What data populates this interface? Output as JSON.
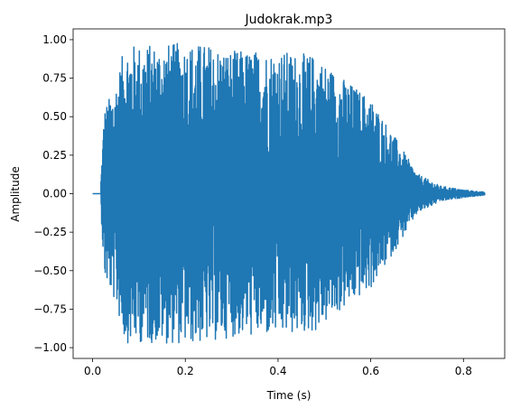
{
  "chart_data": {
    "type": "line",
    "title": "Judokrak.mp3",
    "xlabel": "Time (s)",
    "ylabel": "Amplitude",
    "xlim": [
      -0.042,
      0.889
    ],
    "ylim": [
      -1.07,
      1.07
    ],
    "x_ticks": [
      0.0,
      0.2,
      0.4,
      0.6,
      0.8
    ],
    "x_tick_labels": [
      "0.0",
      "0.2",
      "0.4",
      "0.6",
      "0.8"
    ],
    "y_ticks": [
      -1.0,
      -0.75,
      -0.5,
      -0.25,
      0.0,
      0.25,
      0.5,
      0.75,
      1.0
    ],
    "y_tick_labels": [
      "−1.00",
      "−0.75",
      "−0.50",
      "−0.25",
      "0.00",
      "0.25",
      "0.50",
      "0.75",
      "1.00"
    ],
    "grid": false,
    "series": [
      {
        "color": "#1f77b4",
        "duration": 0.846,
        "silence_until": 0.018,
        "envelope": [
          {
            "t": 0.018,
            "a": 0.1
          },
          {
            "t": 0.025,
            "a": 0.55
          },
          {
            "t": 0.05,
            "a": 0.72
          },
          {
            "t": 0.07,
            "a": 0.97
          },
          {
            "t": 0.12,
            "a": 0.97
          },
          {
            "t": 0.2,
            "a": 0.98
          },
          {
            "t": 0.25,
            "a": 0.97
          },
          {
            "t": 0.3,
            "a": 0.93
          },
          {
            "t": 0.4,
            "a": 0.93
          },
          {
            "t": 0.48,
            "a": 0.9
          },
          {
            "t": 0.55,
            "a": 0.73
          },
          {
            "t": 0.6,
            "a": 0.62
          },
          {
            "t": 0.65,
            "a": 0.38
          },
          {
            "t": 0.7,
            "a": 0.13
          },
          {
            "t": 0.75,
            "a": 0.05
          },
          {
            "t": 0.8,
            "a": 0.025
          },
          {
            "t": 0.846,
            "a": 0.01
          }
        ]
      }
    ]
  }
}
